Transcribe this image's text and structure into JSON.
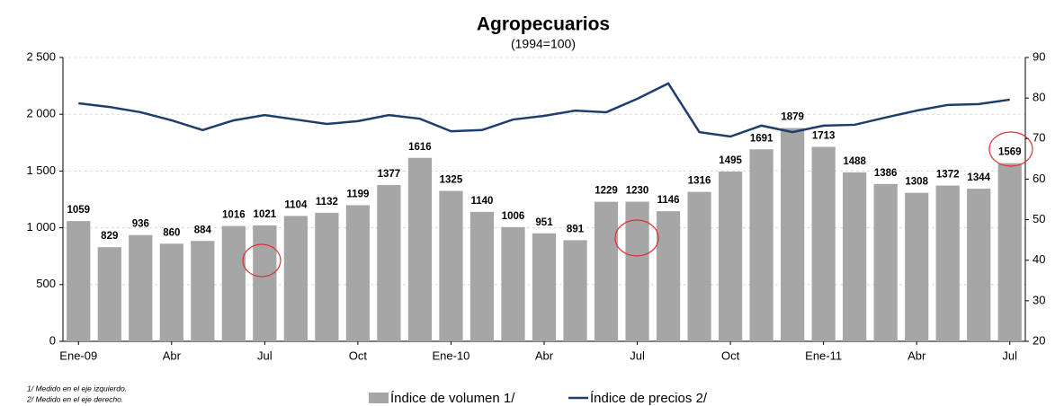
{
  "chart_data": {
    "type": "bar_line",
    "title": "Agropecuarios",
    "subtitle": "(1994=100)",
    "categories": [
      "Ene-09",
      null,
      null,
      "Abr",
      null,
      null,
      "Jul",
      null,
      null,
      "Oct",
      null,
      null,
      "Ene-10",
      null,
      null,
      "Abr",
      null,
      null,
      "Jul",
      null,
      null,
      "Oct",
      null,
      null,
      "Ene-11",
      null,
      null,
      "Abr",
      null,
      null,
      "Jul"
    ],
    "series": [
      {
        "name": "Índice de volumen 1/",
        "color": "#a6a6a6",
        "type": "bar",
        "values": [
          1059,
          829,
          936,
          860,
          884,
          1016,
          1021,
          1104,
          1132,
          1199,
          1377,
          1616,
          1325,
          1140,
          1006,
          951,
          891,
          1229,
          1230,
          1146,
          1316,
          1495,
          1691,
          1879,
          1713,
          1488,
          1386,
          1308,
          1372,
          1344,
          1569
        ]
      },
      {
        "name": "Índice de precios 2/",
        "color": "#1f3e6e",
        "type": "line",
        "axis": "y2",
        "values": [
          78.7,
          77.8,
          76.5,
          74.5,
          72.1,
          74.5,
          75.8,
          74.7,
          73.6,
          74.3,
          75.8,
          74.9,
          71.8,
          72.1,
          74.7,
          75.6,
          76.9,
          76.5,
          79.8,
          83.6,
          71.6,
          70.5,
          73.2,
          71.6,
          73.2,
          73.4,
          75.2,
          76.9,
          78.3,
          78.5,
          79.6
        ]
      }
    ],
    "ylim": [
      0,
      2500
    ],
    "yticks": [
      0,
      {
        "value": 500,
        "label": "500"
      },
      {
        "value": 1000,
        "label": "1 000"
      },
      {
        "value": 1500,
        "label": "1 500"
      },
      {
        "value": 2000,
        "label": "2 000"
      },
      {
        "value": 2500,
        "label": "2 500"
      }
    ],
    "y2lim": [
      20,
      90
    ],
    "y2ticks": [
      20,
      30,
      40,
      50,
      60,
      70,
      80,
      90
    ],
    "grid": true,
    "notes": [
      "1/ Medido en el eje izquierdo.",
      "2/ Medido en el eje derecho."
    ]
  }
}
